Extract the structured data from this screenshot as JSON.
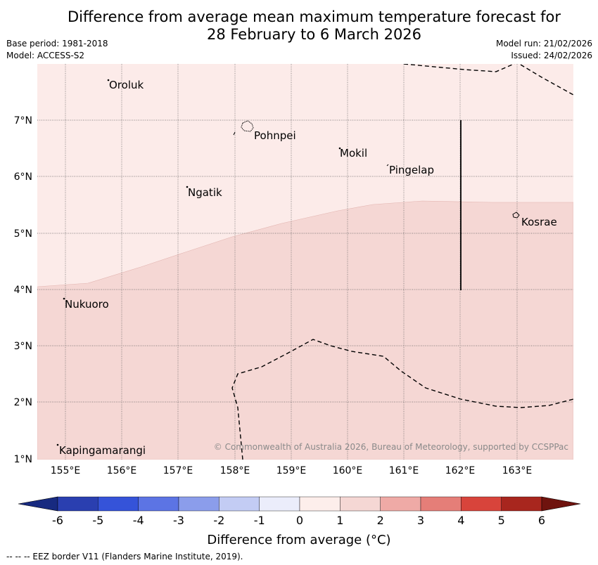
{
  "title": {
    "line1": "Difference from average mean maximum temperature forecast for",
    "line2": "28 February to 6 March 2026"
  },
  "meta": {
    "base_period": "Base period: 1981-2018",
    "model": "Model: ACCESS-S2",
    "model_run": "Model run: 21/02/2026",
    "issued": "Issued: 24/02/2026"
  },
  "map": {
    "lat_labels": [
      "7°N",
      "6°N",
      "5°N",
      "4°N",
      "3°N",
      "2°N",
      "1°N"
    ],
    "lon_labels": [
      "155°E",
      "156°E",
      "157°E",
      "158°E",
      "159°E",
      "160°E",
      "161°E",
      "162°E",
      "163°E"
    ],
    "places": [
      "Oroluk",
      "Pohnpei",
      "Mokil",
      "Pingelap",
      "Ngatik",
      "Kosrae",
      "Nukuoro",
      "Kapingamarangi"
    ],
    "copyright": "© Commonwealth of Australia 2026, Bureau of Meteorology, supported by CCSPPac",
    "fill_colors": {
      "band_0_to_1": "#fcebe9",
      "band_1_to_2": "#f5d7d4"
    }
  },
  "colorbar": {
    "title": "Difference from average (°C)",
    "ticks": [
      "-6",
      "-5",
      "-4",
      "-3",
      "-2",
      "-1",
      "0",
      "1",
      "2",
      "3",
      "4",
      "5",
      "6"
    ],
    "colors": [
      "#172a80",
      "#2a3fb0",
      "#3553d9",
      "#5c74e4",
      "#8b9deb",
      "#c3ccf4",
      "#ebedfb",
      "#fdeeeb",
      "#f5d7d4",
      "#efaaa6",
      "#e57e78",
      "#d8443b",
      "#a8261e",
      "#6f130e"
    ]
  },
  "footer": "--  --  -- EEZ border V11 (Flanders Marine Institute, 2019)."
}
